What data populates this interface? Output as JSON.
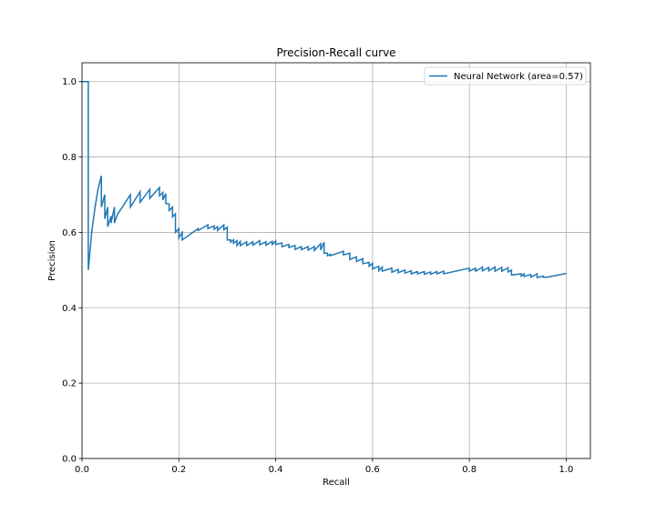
{
  "chart_data": {
    "type": "line",
    "title": "Precision-Recall curve",
    "xlabel": "Recall",
    "ylabel": "Precision",
    "xlim": [
      0,
      1.05
    ],
    "ylim": [
      0,
      1.05
    ],
    "xticks": [
      "0.0",
      "0.2",
      "0.4",
      "0.6",
      "0.8",
      "1.0"
    ],
    "yticks": [
      "0.0",
      "0.2",
      "0.4",
      "0.6",
      "0.8",
      "1.0"
    ],
    "grid": true,
    "legend_position": "top-right",
    "series": [
      {
        "name": "Neural Network (area=0.57)",
        "color": "#1f77b4",
        "x": [
          0.0,
          0.013,
          0.013,
          0.013,
          0.02,
          0.027,
          0.033,
          0.04,
          0.04,
          0.047,
          0.047,
          0.053,
          0.053,
          0.06,
          0.06,
          0.067,
          0.067,
          0.073,
          0.073,
          0.1,
          0.1,
          0.12,
          0.12,
          0.14,
          0.14,
          0.16,
          0.16,
          0.167,
          0.167,
          0.173,
          0.173,
          0.18,
          0.18,
          0.187,
          0.187,
          0.193,
          0.193,
          0.2,
          0.2,
          0.207,
          0.207,
          0.24,
          0.24,
          0.26,
          0.26,
          0.273,
          0.273,
          0.28,
          0.28,
          0.293,
          0.293,
          0.3,
          0.3,
          0.307,
          0.307,
          0.313,
          0.313,
          0.32,
          0.32,
          0.327,
          0.327,
          0.34,
          0.34,
          0.353,
          0.353,
          0.367,
          0.367,
          0.38,
          0.38,
          0.393,
          0.393,
          0.4,
          0.4,
          0.413,
          0.413,
          0.427,
          0.427,
          0.44,
          0.44,
          0.453,
          0.453,
          0.467,
          0.467,
          0.48,
          0.48,
          0.493,
          0.493,
          0.5,
          0.5,
          0.507,
          0.507,
          0.513,
          0.513,
          0.54,
          0.54,
          0.553,
          0.553,
          0.567,
          0.567,
          0.58,
          0.58,
          0.593,
          0.593,
          0.6,
          0.6,
          0.613,
          0.613,
          0.62,
          0.62,
          0.64,
          0.64,
          0.653,
          0.653,
          0.667,
          0.667,
          0.68,
          0.68,
          0.693,
          0.693,
          0.707,
          0.707,
          0.72,
          0.72,
          0.733,
          0.733,
          0.747,
          0.747,
          0.8,
          0.8,
          0.813,
          0.813,
          0.827,
          0.827,
          0.84,
          0.84,
          0.853,
          0.853,
          0.867,
          0.867,
          0.88,
          0.88,
          0.887,
          0.887,
          0.907,
          0.907,
          0.913,
          0.913,
          0.927,
          0.927,
          0.94,
          0.94,
          0.953,
          0.953,
          0.96,
          1.0
        ],
        "y": [
          1.0,
          1.0,
          0.5,
          0.5,
          0.6,
          0.667,
          0.714,
          0.75,
          0.667,
          0.7,
          0.636,
          0.667,
          0.615,
          0.643,
          0.625,
          0.667,
          0.625,
          0.647,
          0.647,
          0.7,
          0.667,
          0.708,
          0.68,
          0.714,
          0.69,
          0.719,
          0.697,
          0.706,
          0.686,
          0.703,
          0.677,
          0.675,
          0.658,
          0.667,
          0.641,
          0.649,
          0.6,
          0.61,
          0.585,
          0.6,
          0.58,
          0.61,
          0.605,
          0.62,
          0.61,
          0.617,
          0.608,
          0.615,
          0.605,
          0.62,
          0.607,
          0.614,
          0.58,
          0.58,
          0.574,
          0.58,
          0.571,
          0.578,
          0.565,
          0.576,
          0.565,
          0.575,
          0.565,
          0.575,
          0.566,
          0.578,
          0.567,
          0.575,
          0.566,
          0.576,
          0.568,
          0.577,
          0.568,
          0.572,
          0.562,
          0.568,
          0.56,
          0.565,
          0.555,
          0.562,
          0.554,
          0.562,
          0.553,
          0.562,
          0.552,
          0.57,
          0.553,
          0.574,
          0.545,
          0.545,
          0.538,
          0.542,
          0.538,
          0.55,
          0.54,
          0.545,
          0.528,
          0.535,
          0.523,
          0.53,
          0.517,
          0.52,
          0.51,
          0.518,
          0.503,
          0.51,
          0.498,
          0.508,
          0.497,
          0.505,
          0.494,
          0.502,
          0.493,
          0.5,
          0.492,
          0.498,
          0.49,
          0.496,
          0.49,
          0.496,
          0.489,
          0.495,
          0.489,
          0.496,
          0.49,
          0.497,
          0.49,
          0.505,
          0.497,
          0.505,
          0.497,
          0.508,
          0.498,
          0.507,
          0.498,
          0.508,
          0.497,
          0.507,
          0.497,
          0.506,
          0.495,
          0.5,
          0.487,
          0.49,
          0.484,
          0.49,
          0.483,
          0.488,
          0.481,
          0.49,
          0.48,
          0.484,
          0.481,
          0.481,
          0.491
        ]
      }
    ]
  }
}
